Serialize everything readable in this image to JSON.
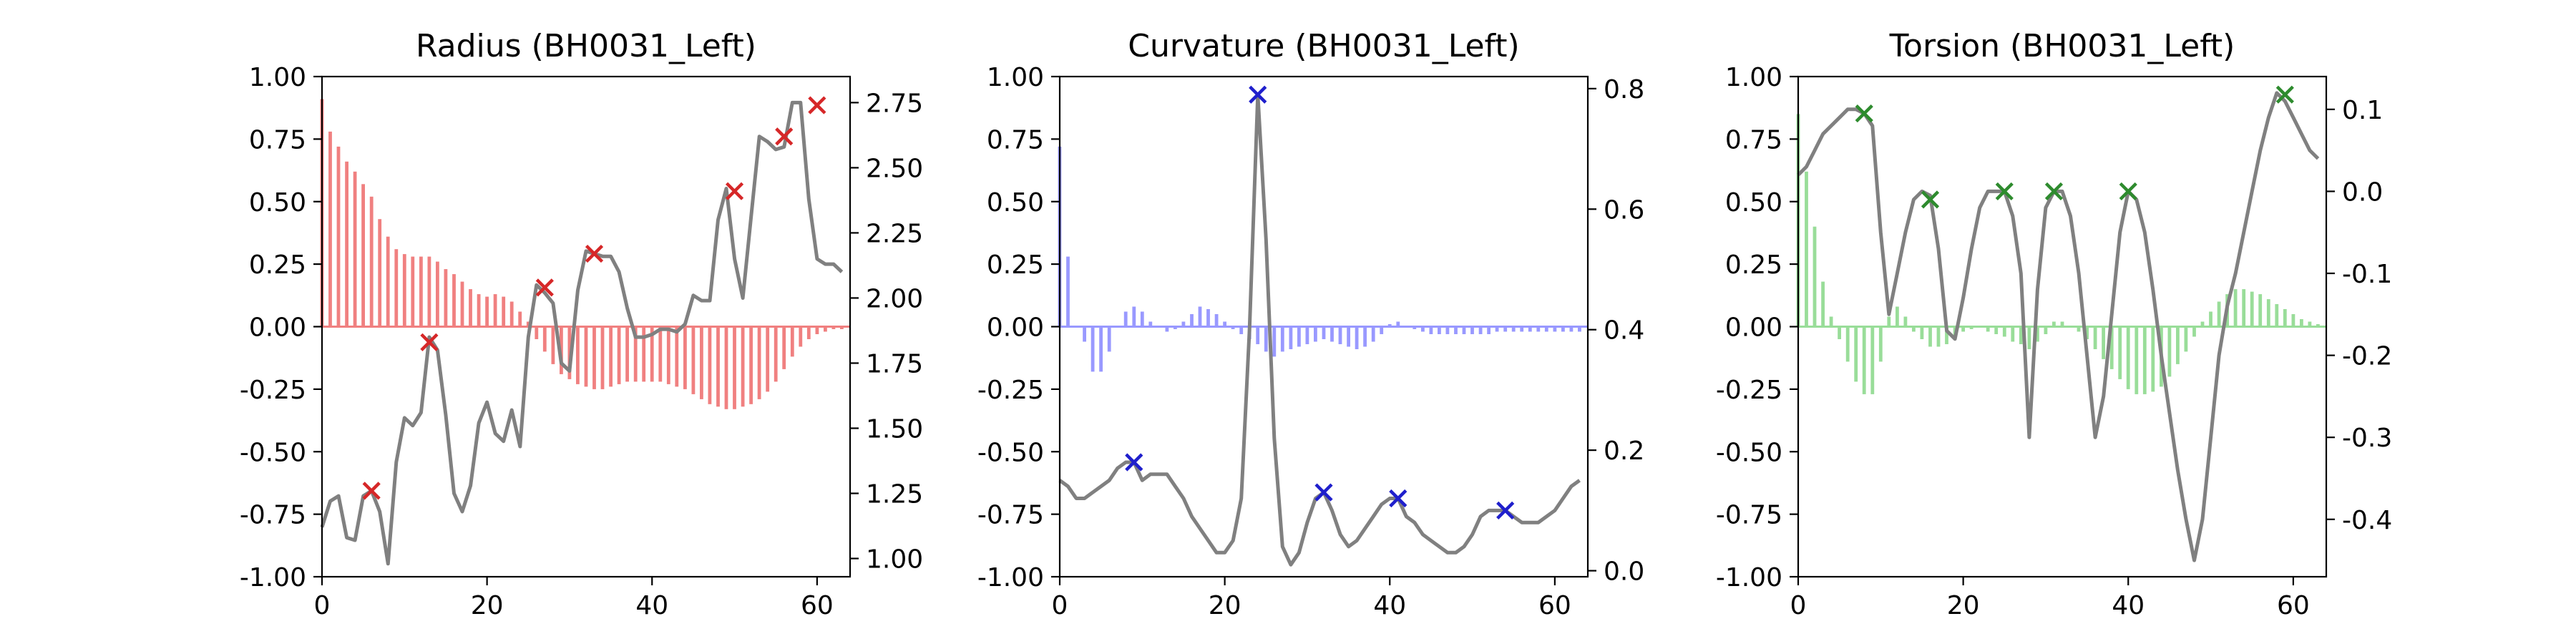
{
  "chart_data": [
    {
      "type": "bar+line",
      "title": "Radius (BH0031_Left)",
      "bar_color": "#f08080",
      "line_color": "#808080",
      "marker_color": "#d62728",
      "xlim": [
        0,
        64
      ],
      "ylim_left": [
        -1.0,
        1.0
      ],
      "ylim_right": [
        0.93,
        2.85
      ],
      "x_ticks": [
        "0",
        "20",
        "40",
        "60"
      ],
      "y_ticks_left": [
        "1.00",
        "0.75",
        "0.50",
        "0.25",
        "0.00",
        "-0.25",
        "-0.50",
        "-0.75",
        "-1.00"
      ],
      "y_ticks_right": [
        "2.75",
        "2.50",
        "2.25",
        "2.00",
        "1.75",
        "1.50",
        "1.25",
        "1.00"
      ],
      "bars": [
        0.91,
        0.78,
        0.72,
        0.66,
        0.62,
        0.57,
        0.52,
        0.43,
        0.36,
        0.31,
        0.29,
        0.28,
        0.28,
        0.28,
        0.26,
        0.23,
        0.21,
        0.18,
        0.15,
        0.13,
        0.12,
        0.13,
        0.12,
        0.1,
        0.06,
        0.02,
        -0.05,
        -0.1,
        -0.15,
        -0.19,
        -0.21,
        -0.23,
        -0.24,
        -0.25,
        -0.25,
        -0.24,
        -0.23,
        -0.22,
        -0.22,
        -0.22,
        -0.22,
        -0.22,
        -0.23,
        -0.24,
        -0.25,
        -0.27,
        -0.29,
        -0.31,
        -0.32,
        -0.33,
        -0.33,
        -0.32,
        -0.31,
        -0.29,
        -0.26,
        -0.22,
        -0.17,
        -0.12,
        -0.08,
        -0.05,
        -0.03,
        -0.02,
        -0.01,
        -0.01
      ],
      "line": [
        1.12,
        1.22,
        1.24,
        1.08,
        1.07,
        1.24,
        1.26,
        1.18,
        0.98,
        1.37,
        1.54,
        1.51,
        1.56,
        1.85,
        1.8,
        1.55,
        1.25,
        1.18,
        1.28,
        1.52,
        1.6,
        1.48,
        1.45,
        1.57,
        1.43,
        1.85,
        2.05,
        2.02,
        1.98,
        1.75,
        1.72,
        2.03,
        2.18,
        2.17,
        2.16,
        2.16,
        2.1,
        1.96,
        1.85,
        1.85,
        1.86,
        1.88,
        1.88,
        1.87,
        1.9,
        2.01,
        1.99,
        1.99,
        2.3,
        2.42,
        2.15,
        2.0,
        2.31,
        2.62,
        2.6,
        2.57,
        2.58,
        2.75,
        2.75,
        2.38,
        2.15,
        2.13,
        2.13,
        2.1
      ],
      "markers": [
        {
          "x": 6,
          "y": 1.26
        },
        {
          "x": 13,
          "y": 1.83
        },
        {
          "x": 27,
          "y": 2.04
        },
        {
          "x": 33,
          "y": 2.17
        },
        {
          "x": 50,
          "y": 2.41
        },
        {
          "x": 56,
          "y": 2.62
        },
        {
          "x": 60,
          "y": 2.74
        }
      ]
    },
    {
      "type": "bar+line",
      "title": "Curvature (BH0031_Left)",
      "bar_color": "#9999ff",
      "line_color": "#808080",
      "marker_color": "#1f1fcc",
      "xlim": [
        0,
        64
      ],
      "ylim_left": [
        -1.0,
        1.0
      ],
      "ylim_right": [
        -0.01,
        0.82
      ],
      "x_ticks": [
        "0",
        "20",
        "40",
        "60"
      ],
      "y_ticks_left": [
        "1.00",
        "0.75",
        "0.50",
        "0.25",
        "0.00",
        "-0.25",
        "-0.50",
        "-0.75",
        "-1.00"
      ],
      "y_ticks_right": [
        "0.8",
        "0.6",
        "0.4",
        "0.2",
        "0.0"
      ],
      "bars": [
        0.72,
        0.28,
        0.0,
        -0.06,
        -0.18,
        -0.18,
        -0.1,
        0.0,
        0.06,
        0.08,
        0.06,
        0.02,
        0.0,
        -0.02,
        -0.01,
        0.02,
        0.05,
        0.08,
        0.07,
        0.05,
        0.02,
        -0.01,
        -0.03,
        -0.05,
        -0.07,
        -0.1,
        -0.12,
        -0.1,
        -0.09,
        -0.08,
        -0.07,
        -0.06,
        -0.05,
        -0.06,
        -0.07,
        -0.08,
        -0.09,
        -0.08,
        -0.06,
        -0.03,
        0.01,
        0.02,
        0.0,
        -0.01,
        -0.02,
        -0.03,
        -0.03,
        -0.03,
        -0.03,
        -0.03,
        -0.03,
        -0.03,
        -0.03,
        -0.02,
        -0.02,
        -0.02,
        -0.02,
        -0.02,
        -0.02,
        -0.02,
        -0.02,
        -0.02,
        -0.02,
        -0.02
      ],
      "line": [
        0.15,
        0.14,
        0.12,
        0.12,
        0.13,
        0.14,
        0.15,
        0.17,
        0.18,
        0.18,
        0.15,
        0.16,
        0.16,
        0.16,
        0.14,
        0.12,
        0.09,
        0.07,
        0.05,
        0.03,
        0.03,
        0.05,
        0.12,
        0.4,
        0.79,
        0.55,
        0.22,
        0.04,
        0.01,
        0.03,
        0.08,
        0.12,
        0.13,
        0.1,
        0.06,
        0.04,
        0.05,
        0.07,
        0.09,
        0.11,
        0.12,
        0.12,
        0.09,
        0.08,
        0.06,
        0.05,
        0.04,
        0.03,
        0.03,
        0.04,
        0.06,
        0.09,
        0.1,
        0.1,
        0.1,
        0.09,
        0.08,
        0.08,
        0.08,
        0.09,
        0.1,
        0.12,
        0.14,
        0.15
      ],
      "markers": [
        {
          "x": 9,
          "y": 0.18
        },
        {
          "x": 24,
          "y": 0.79
        },
        {
          "x": 32,
          "y": 0.13
        },
        {
          "x": 41,
          "y": 0.12
        },
        {
          "x": 54,
          "y": 0.1
        }
      ]
    },
    {
      "type": "bar+line",
      "title": "Torsion (BH0031_Left)",
      "bar_color": "#99dd99",
      "line_color": "#808080",
      "marker_color": "#2e8b2e",
      "xlim": [
        0,
        64
      ],
      "ylim_left": [
        -1.0,
        1.0
      ],
      "ylim_right": [
        -0.47,
        0.14
      ],
      "x_ticks": [
        "0",
        "20",
        "40",
        "60"
      ],
      "y_ticks_left": [
        "1.00",
        "0.75",
        "0.50",
        "0.25",
        "0.00",
        "-0.25",
        "-0.50",
        "-0.75",
        "-1.00"
      ],
      "y_ticks_right": [
        "0.1",
        "0.0",
        "-0.1",
        "-0.2",
        "-0.3",
        "-0.4"
      ],
      "bars": [
        0.85,
        0.62,
        0.4,
        0.18,
        0.04,
        -0.05,
        -0.14,
        -0.22,
        -0.27,
        -0.27,
        -0.14,
        0.04,
        0.08,
        0.04,
        -0.02,
        -0.05,
        -0.08,
        -0.08,
        -0.07,
        -0.05,
        -0.02,
        -0.01,
        0.0,
        -0.02,
        -0.03,
        -0.04,
        -0.06,
        -0.07,
        -0.09,
        -0.06,
        -0.03,
        0.02,
        0.02,
        0.0,
        -0.02,
        -0.05,
        -0.09,
        -0.13,
        -0.17,
        -0.21,
        -0.25,
        -0.27,
        -0.27,
        -0.26,
        -0.24,
        -0.2,
        -0.15,
        -0.1,
        -0.04,
        0.02,
        0.06,
        0.1,
        0.13,
        0.15,
        0.15,
        0.14,
        0.13,
        0.11,
        0.09,
        0.07,
        0.05,
        0.03,
        0.02,
        0.01
      ],
      "line": [
        0.02,
        0.03,
        0.05,
        0.07,
        0.08,
        0.09,
        0.1,
        0.1,
        0.095,
        0.08,
        -0.05,
        -0.15,
        -0.1,
        -0.05,
        -0.01,
        0.0,
        -0.005,
        -0.07,
        -0.17,
        -0.18,
        -0.13,
        -0.07,
        -0.02,
        0.0,
        0.0,
        0.0,
        -0.03,
        -0.1,
        -0.3,
        -0.12,
        -0.02,
        -0.0,
        -0.0,
        -0.03,
        -0.1,
        -0.2,
        -0.3,
        -0.25,
        -0.15,
        -0.05,
        0.0,
        -0.01,
        -0.05,
        -0.12,
        -0.2,
        -0.27,
        -0.34,
        -0.4,
        -0.45,
        -0.4,
        -0.3,
        -0.2,
        -0.14,
        -0.1,
        -0.05,
        0.0,
        0.05,
        0.09,
        0.12,
        0.11,
        0.09,
        0.07,
        0.05,
        0.04
      ],
      "markers": [
        {
          "x": 8,
          "y": 0.095
        },
        {
          "x": 16,
          "y": -0.01
        },
        {
          "x": 25,
          "y": 0.0
        },
        {
          "x": 31,
          "y": 0.0
        },
        {
          "x": 40,
          "y": 0.0
        },
        {
          "x": 59,
          "y": 0.118
        }
      ]
    }
  ]
}
